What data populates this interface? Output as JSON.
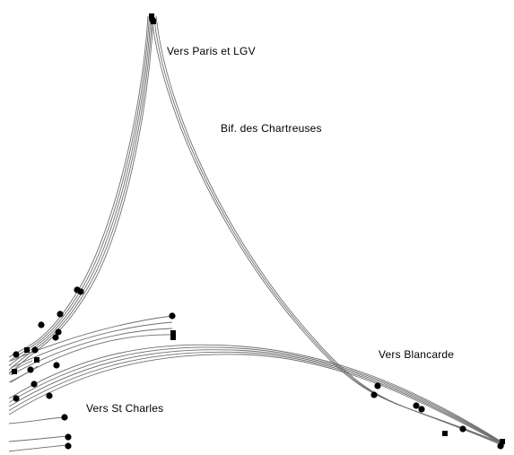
{
  "labels": {
    "paris": "Vers Paris et LGV",
    "chartreux": "Bif. des Chartreuses",
    "blancarde": "Vers Blancarde",
    "st_charles": "Vers St Charles"
  },
  "colors": {
    "background": "#ffffff",
    "track": "#6e6e6e",
    "signal": "#000000",
    "text": "#000000"
  },
  "legend": "none"
}
